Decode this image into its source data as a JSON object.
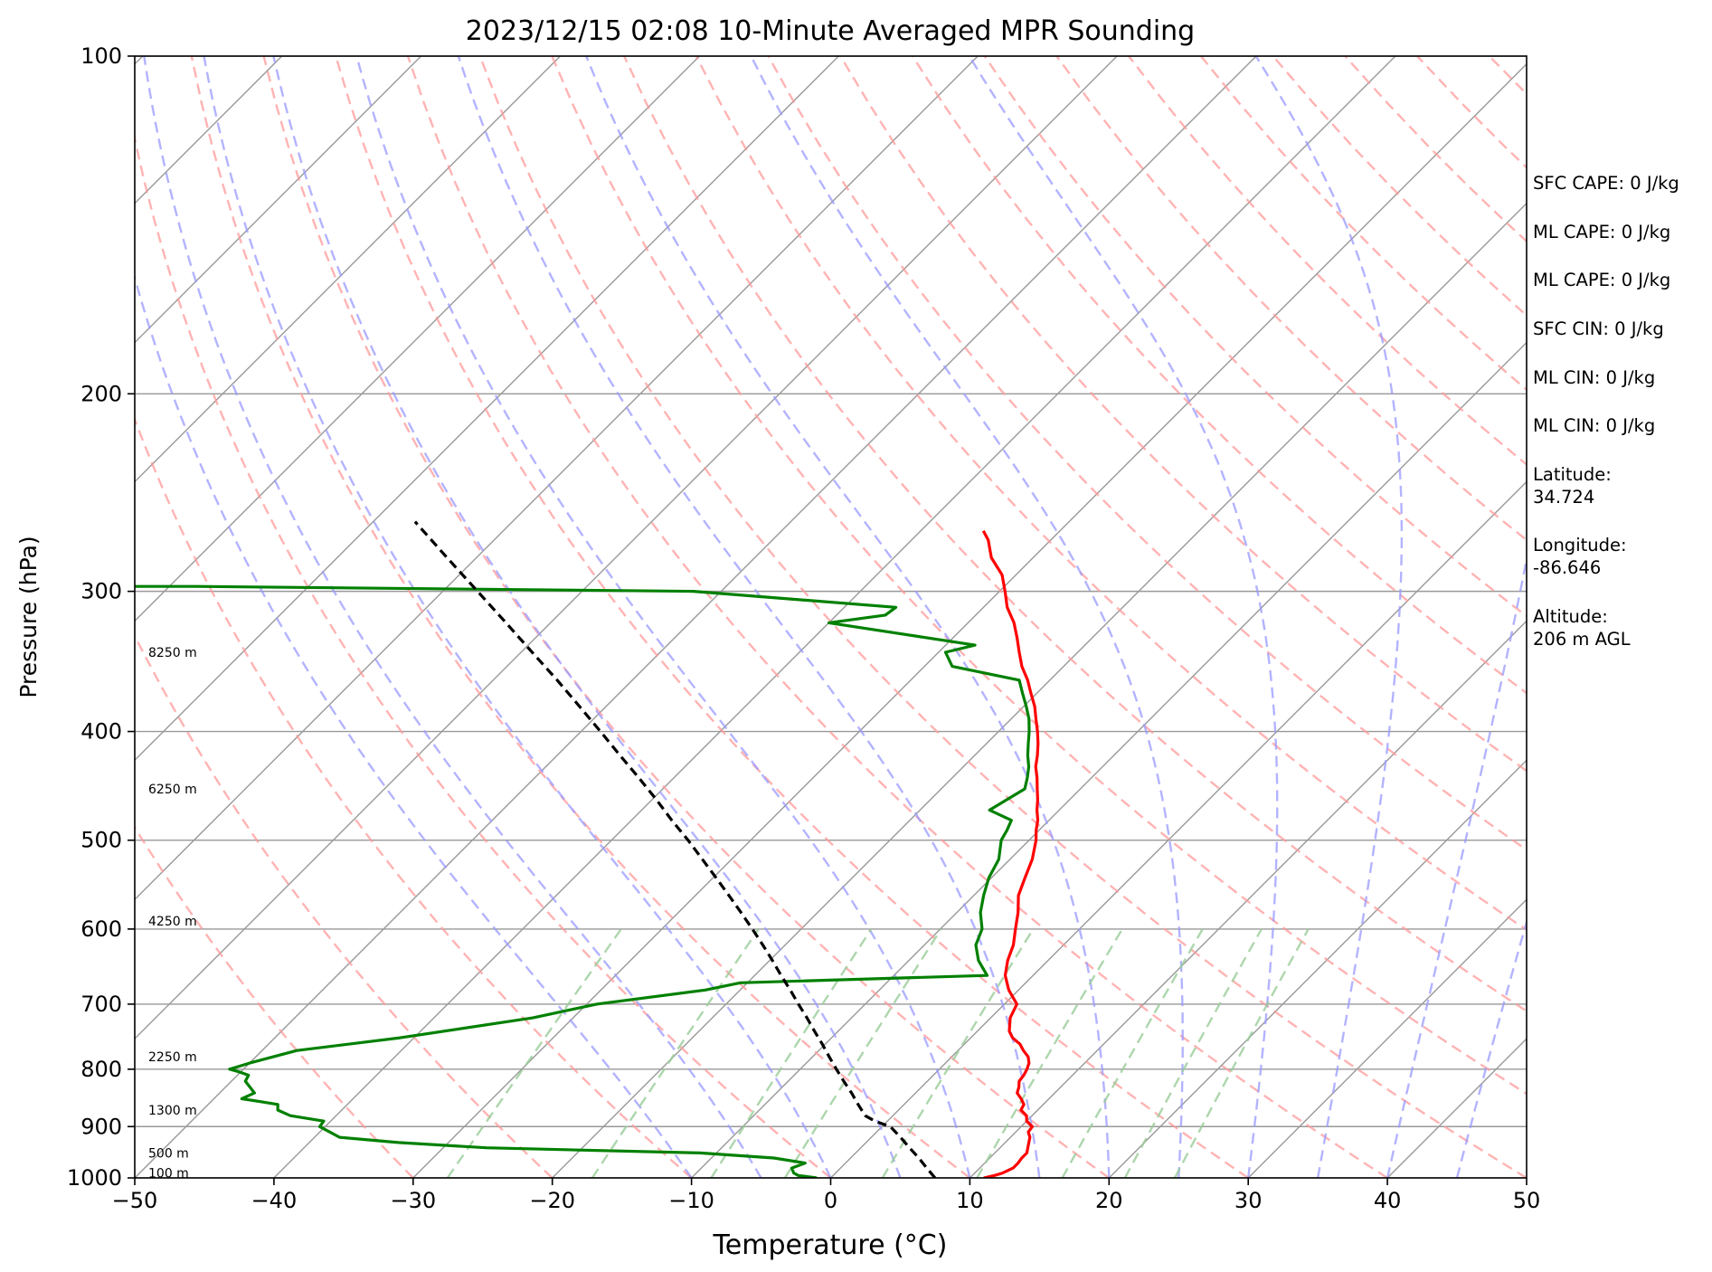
{
  "chart_data": {
    "type": "line",
    "title": "2023/12/15 02:08 10-Minute Averaged MPR Sounding",
    "xlabel": "Temperature (°C)",
    "ylabel": "Pressure (hPa)",
    "xlim": [
      -50,
      50
    ],
    "ylim": [
      1000,
      100
    ],
    "y_scale": "log",
    "x_ticks": [
      -50,
      -40,
      -30,
      -20,
      -10,
      0,
      10,
      20,
      30,
      40,
      50
    ],
    "x_tick_labels": [
      "−50",
      "−40",
      "−30",
      "−20",
      "−10",
      "0",
      "10",
      "20",
      "30",
      "40",
      "50"
    ],
    "y_ticks": [
      100,
      200,
      300,
      400,
      500,
      600,
      700,
      800,
      900,
      1000
    ],
    "y_tick_labels": [
      "100",
      "200",
      "300",
      "400",
      "500",
      "600",
      "700",
      "800",
      "900",
      "1000"
    ],
    "grid": true,
    "skew_degrees": 45,
    "background_lines": {
      "isotherm_color": "#999999",
      "dry_adiabat_color": "#ff9999",
      "moist_adiabat_color": "#9999ff",
      "mixing_ratio_color": "#99cc99"
    },
    "height_labels": [
      {
        "text": "100 m",
        "pressure": 990
      },
      {
        "text": "500 m",
        "pressure": 950
      },
      {
        "text": "1300 m",
        "pressure": 870
      },
      {
        "text": "2250 m",
        "pressure": 780
      },
      {
        "text": "4250 m",
        "pressure": 590
      },
      {
        "text": "6250 m",
        "pressure": 450
      },
      {
        "text": "8250 m",
        "pressure": 340
      }
    ],
    "series": [
      {
        "role": "temperature",
        "color": "#ff0000",
        "pressure": [
          1000,
          995,
          990,
          980,
          970,
          960,
          950,
          940,
          930,
          920,
          910,
          900,
          890,
          880,
          870,
          860,
          850,
          840,
          830,
          820,
          810,
          800,
          790,
          780,
          770,
          760,
          750,
          740,
          720,
          700,
          680,
          660,
          640,
          620,
          600,
          580,
          560,
          540,
          520,
          500,
          490,
          480,
          470,
          460,
          450,
          440,
          430,
          420,
          410,
          400,
          390,
          380,
          370,
          360,
          350,
          340,
          330,
          320,
          310,
          300,
          290,
          280,
          270,
          265
        ],
        "temp": [
          11.0,
          11.6,
          12.0,
          12.4,
          12.4,
          12.3,
          12.3,
          12.0,
          11.7,
          11.4,
          10.9,
          10.8,
          10.0,
          9.6,
          8.8,
          8.6,
          8.0,
          7.3,
          7.0,
          6.6,
          6.5,
          6.3,
          6.0,
          5.5,
          4.7,
          4.0,
          3.0,
          2.3,
          1.4,
          0.9,
          -0.7,
          -2.0,
          -2.9,
          -3.6,
          -4.6,
          -5.6,
          -6.8,
          -7.6,
          -8.4,
          -9.5,
          -10.2,
          -10.8,
          -11.6,
          -12.3,
          -13.1,
          -13.9,
          -14.8,
          -15.5,
          -16.3,
          -17.2,
          -18.2,
          -19.2,
          -20.4,
          -21.6,
          -23.0,
          -24.2,
          -25.4,
          -26.7,
          -28.3,
          -29.6,
          -31.0,
          -33.0,
          -34.5,
          -35.5
        ]
      },
      {
        "role": "dewpoint",
        "color": "#008000",
        "pressure": [
          1000,
          995,
          990,
          980,
          970,
          960,
          950,
          940,
          930,
          920,
          910,
          900,
          890,
          880,
          870,
          860,
          855,
          850,
          840,
          820,
          810,
          805,
          800,
          795,
          790,
          770,
          750,
          720,
          700,
          680,
          670,
          660,
          640,
          620,
          600,
          580,
          560,
          540,
          520,
          500,
          490,
          480,
          470,
          460,
          450,
          440,
          430,
          420,
          410,
          400,
          390,
          380,
          370,
          360,
          350,
          340,
          335,
          320,
          315,
          310,
          300,
          297,
          297
        ],
        "temp": [
          -1.0,
          -2.5,
          -3.0,
          -3.5,
          -2.9,
          -5.5,
          -11.2,
          -26.9,
          -33.6,
          -38.2,
          -39.3,
          -40.4,
          -40.5,
          -43.3,
          -44.6,
          -45.0,
          -46.5,
          -48.0,
          -47.5,
          -49.0,
          -49.2,
          -50.0,
          -51.0,
          -50.5,
          -50.0,
          -47.5,
          -41.0,
          -32.9,
          -29.3,
          -22.5,
          -20.5,
          -3.3,
          -5.0,
          -6.3,
          -7.0,
          -8.3,
          -9.3,
          -10.2,
          -10.8,
          -12.0,
          -12.3,
          -12.7,
          -15.0,
          -14.5,
          -14.0,
          -14.6,
          -15.3,
          -16.2,
          -17.0,
          -17.8,
          -18.7,
          -19.8,
          -21.0,
          -22.2,
          -28.0,
          -29.5,
          -27.9,
          -40.0,
          -36.5,
          -36.3,
          -52.0,
          -88.0,
          -107.0
        ]
      },
      {
        "role": "parcel",
        "color": "#000000",
        "style": "dashed",
        "pressure": [
          1000,
          980,
          960,
          940,
          920,
          900,
          890,
          880,
          860,
          840,
          820,
          800,
          780,
          760,
          740,
          720,
          700,
          680,
          660,
          640,
          620,
          600,
          580,
          560,
          540,
          520,
          500,
          480,
          460,
          440,
          420,
          400,
          380,
          360,
          340,
          320,
          300,
          280,
          260
        ],
        "temp": [
          7.5,
          6.2,
          4.9,
          3.5,
          2.1,
          0.6,
          -0.9,
          -2.0,
          -3.3,
          -4.6,
          -6.0,
          -7.4,
          -8.8,
          -10.2,
          -11.7,
          -13.2,
          -14.8,
          -16.4,
          -18.1,
          -19.8,
          -21.6,
          -23.5,
          -25.5,
          -27.6,
          -29.8,
          -32.1,
          -34.5,
          -37.1,
          -39.7,
          -42.5,
          -45.5,
          -48.6,
          -51.9,
          -55.4,
          -59.2,
          -63.2,
          -67.5,
          -72.1,
          -77.0
        ]
      }
    ]
  },
  "info_panel": [
    "SFC CAPE: 0 J/kg",
    "ML CAPE: 0 J/kg",
    "ML CAPE: 0 J/kg",
    "SFC CIN: 0 J/kg",
    "ML CIN: 0 J/kg",
    "ML CIN: 0 J/kg",
    "Latitude:\n34.724",
    "Longitude:\n-86.646",
    "Altitude:\n206 m AGL"
  ]
}
